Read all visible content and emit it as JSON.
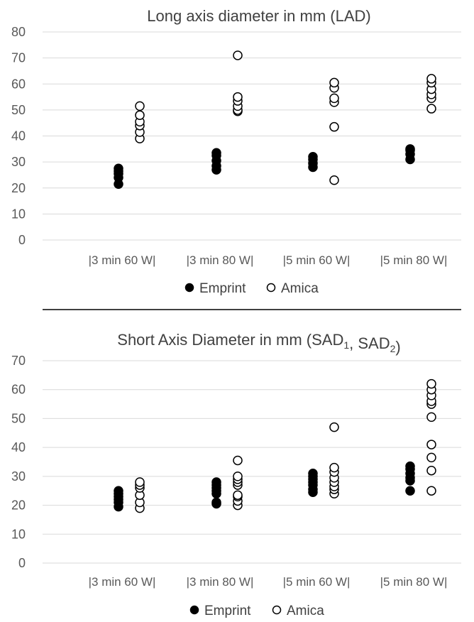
{
  "chart_data": [
    {
      "type": "scatter",
      "title": "Long axis diameter in mm (LAD)",
      "categories": [
        "|3 min 60 W|",
        "|3 min 80 W|",
        "|5 min 60 W|",
        "|5 min 80 W|"
      ],
      "ylim": [
        0,
        80
      ],
      "yticks": [
        0,
        10,
        20,
        30,
        40,
        50,
        60,
        70,
        80
      ],
      "grid": true,
      "legend_position": "bottom",
      "series": [
        {
          "name": "Emprint",
          "marker": "filled-circle",
          "color": "#000000",
          "values": [
            [
              21.5,
              24,
              25.5,
              26.5,
              27.5
            ],
            [
              27,
              28.5,
              30.5,
              32.5,
              33.5
            ],
            [
              28,
              29.5,
              31,
              32
            ],
            [
              31,
              33,
              34.5,
              35
            ]
          ]
        },
        {
          "name": "Amica",
          "marker": "open-circle",
          "color": "#000000",
          "values": [
            [
              39,
              41.5,
              44,
              45.5,
              48,
              51.5
            ],
            [
              49.5,
              50,
              51.5,
              53.5,
              55,
              71
            ],
            [
              23,
              43.5,
              53,
              54.5,
              58.5,
              60.5
            ],
            [
              50.5,
              54.5,
              56,
              58,
              60.5,
              62
            ]
          ]
        }
      ]
    },
    {
      "type": "scatter",
      "title_main": "Short Axis Diameter in mm (SAD",
      "title_sub1": "1",
      "title_mid": ", SAD",
      "title_sub2": "2",
      "title_end": ")",
      "categories": [
        "|3 min 60 W|",
        "|3 min 80 W|",
        "|5 min 60 W|",
        "|5 min 80 W|"
      ],
      "ylim": [
        0,
        70
      ],
      "yticks": [
        0,
        10,
        20,
        30,
        40,
        50,
        60,
        70
      ],
      "grid": true,
      "legend_position": "bottom",
      "series": [
        {
          "name": "Emprint",
          "marker": "filled-circle",
          "color": "#000000",
          "values": [
            [
              19.5,
              21,
              22,
              23,
              24,
              25
            ],
            [
              20.5,
              21,
              24,
              25,
              26,
              27,
              28
            ],
            [
              24.5,
              25.5,
              27,
              28,
              29,
              30,
              31
            ],
            [
              25,
              28.5,
              29.5,
              31,
              32.5,
              33.5
            ]
          ]
        },
        {
          "name": "Amica",
          "marker": "open-circle",
          "color": "#000000",
          "values": [
            [
              19,
              21,
              23.5,
              26,
              27,
              28
            ],
            [
              20,
              21.5,
              23,
              23.5,
              27,
              28,
              29,
              30,
              35.5
            ],
            [
              24,
              25.5,
              26.5,
              28,
              29.5,
              31.5,
              33,
              47
            ],
            [
              25,
              32,
              36.5,
              41,
              50.5,
              55,
              56,
              58,
              60,
              62
            ]
          ]
        }
      ]
    }
  ]
}
